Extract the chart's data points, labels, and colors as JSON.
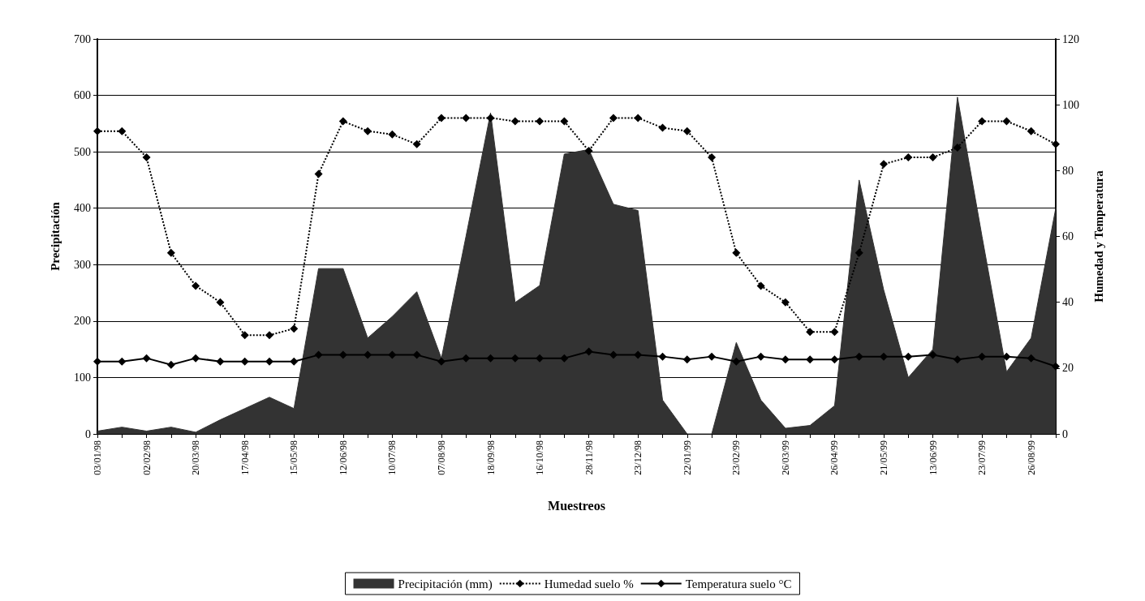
{
  "chart_data": {
    "type": "line",
    "xlabel": "Muestreos",
    "ylabel": "Precipitación",
    "y2label": "Humedad y Temperatura",
    "categories": [
      "03/01/98",
      null,
      "02/02/98",
      null,
      "20/03/98",
      null,
      "17/04/98",
      null,
      "15/05/98",
      null,
      "12/06/98",
      null,
      "10/07/98",
      null,
      "07/08/98",
      null,
      "18/09/98",
      null,
      "16/10/98",
      null,
      "28/11/98",
      null,
      "23/12/98",
      null,
      "22/01/99",
      null,
      "23/02/99",
      null,
      "26/03/99",
      null,
      "26/04/99",
      null,
      "21/05/99",
      null,
      "13/06/99",
      null,
      "23/07/99",
      null,
      "26/08/99",
      null
    ],
    "series": [
      {
        "name": "Precipitación (mm)",
        "type": "area",
        "color": "#333333",
        "values": [
          5,
          12,
          5,
          12,
          3,
          25,
          45,
          65,
          45,
          293,
          293,
          170,
          208,
          252,
          134,
          350,
          569,
          233,
          263,
          496,
          504,
          407,
          396,
          60,
          0,
          0,
          162,
          60,
          10,
          15,
          50,
          450,
          255,
          100,
          150,
          597,
          350,
          110,
          170,
          400
        ]
      },
      {
        "name": "Humedad suelo %",
        "axis": "y2",
        "color": "#000000",
        "line_style": "dotted",
        "marker": "diamond",
        "values": [
          92,
          92,
          84,
          55,
          45,
          40,
          30,
          30,
          32,
          79,
          95,
          92,
          91,
          88,
          96,
          96,
          96,
          95,
          95,
          95,
          86,
          96,
          96,
          93,
          92,
          84,
          55,
          45,
          40,
          31,
          31,
          55,
          82,
          84,
          84,
          87,
          95,
          95,
          92,
          88
        ]
      },
      {
        "name": "Temperatura suelo °C",
        "axis": "y2",
        "color": "#000000",
        "line_style": "solid",
        "marker": "diamond",
        "values": [
          22,
          22,
          23,
          21,
          23,
          22,
          22,
          22,
          22,
          24,
          24,
          24,
          24,
          24,
          22,
          23,
          23,
          23,
          23,
          23,
          25,
          24,
          24,
          23.5,
          22.6,
          23.5,
          22,
          23.5,
          22.6,
          22.6,
          22.6,
          23.5,
          23.5,
          23.5,
          24,
          22.6,
          23.5,
          23.5,
          23,
          20.5
        ]
      }
    ],
    "ylim": [
      0,
      700
    ],
    "yticks": [
      0,
      100,
      200,
      300,
      400,
      500,
      600,
      700
    ],
    "y2lim": [
      0,
      120
    ],
    "y2ticks": [
      0,
      20,
      40,
      60,
      80,
      100,
      120
    ],
    "grid": "y",
    "legend": "bottom"
  }
}
